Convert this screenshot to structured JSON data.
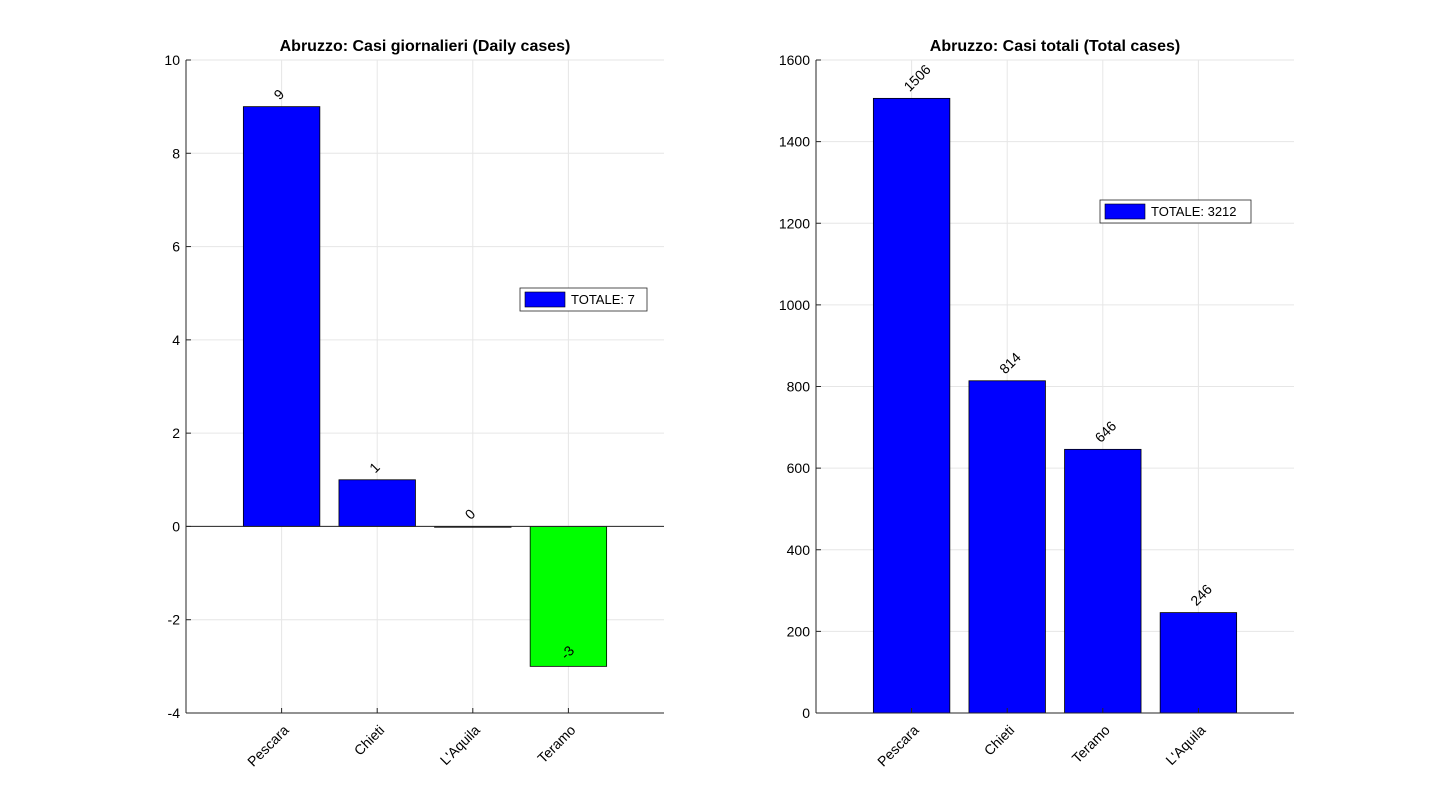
{
  "chart_data": [
    {
      "type": "bar",
      "title": "Abruzzo: Casi giornalieri (Daily cases)",
      "categories": [
        "Pescara",
        "Chieti",
        "L'Aquila",
        "Teramo"
      ],
      "values": [
        9,
        1,
        0,
        -3
      ],
      "bar_colors": [
        "#0000ff",
        "#0000ff",
        "#0000ff",
        "#00ff00"
      ],
      "ylim": [
        -4,
        10
      ],
      "yticks": [
        -4,
        -2,
        0,
        2,
        4,
        6,
        8,
        10
      ],
      "xlim": [
        0,
        5
      ],
      "grid": true,
      "legend": {
        "label": "TOTALE: 7",
        "color": "#0000ff",
        "placement": "center-right"
      }
    },
    {
      "type": "bar",
      "title": "Abruzzo: Casi totali (Total cases)",
      "categories": [
        "Pescara",
        "Chieti",
        "Teramo",
        "L'Aquila"
      ],
      "values": [
        1506,
        814,
        646,
        246
      ],
      "bar_colors": [
        "#0000ff",
        "#0000ff",
        "#0000ff",
        "#0000ff"
      ],
      "ylim": [
        0,
        1600
      ],
      "yticks": [
        0,
        200,
        400,
        600,
        800,
        1000,
        1200,
        1400,
        1600
      ],
      "xlim": [
        0,
        5
      ],
      "grid": true,
      "legend": {
        "label": "TOTALE: 3212",
        "color": "#0000ff",
        "placement": "top-right"
      }
    }
  ]
}
